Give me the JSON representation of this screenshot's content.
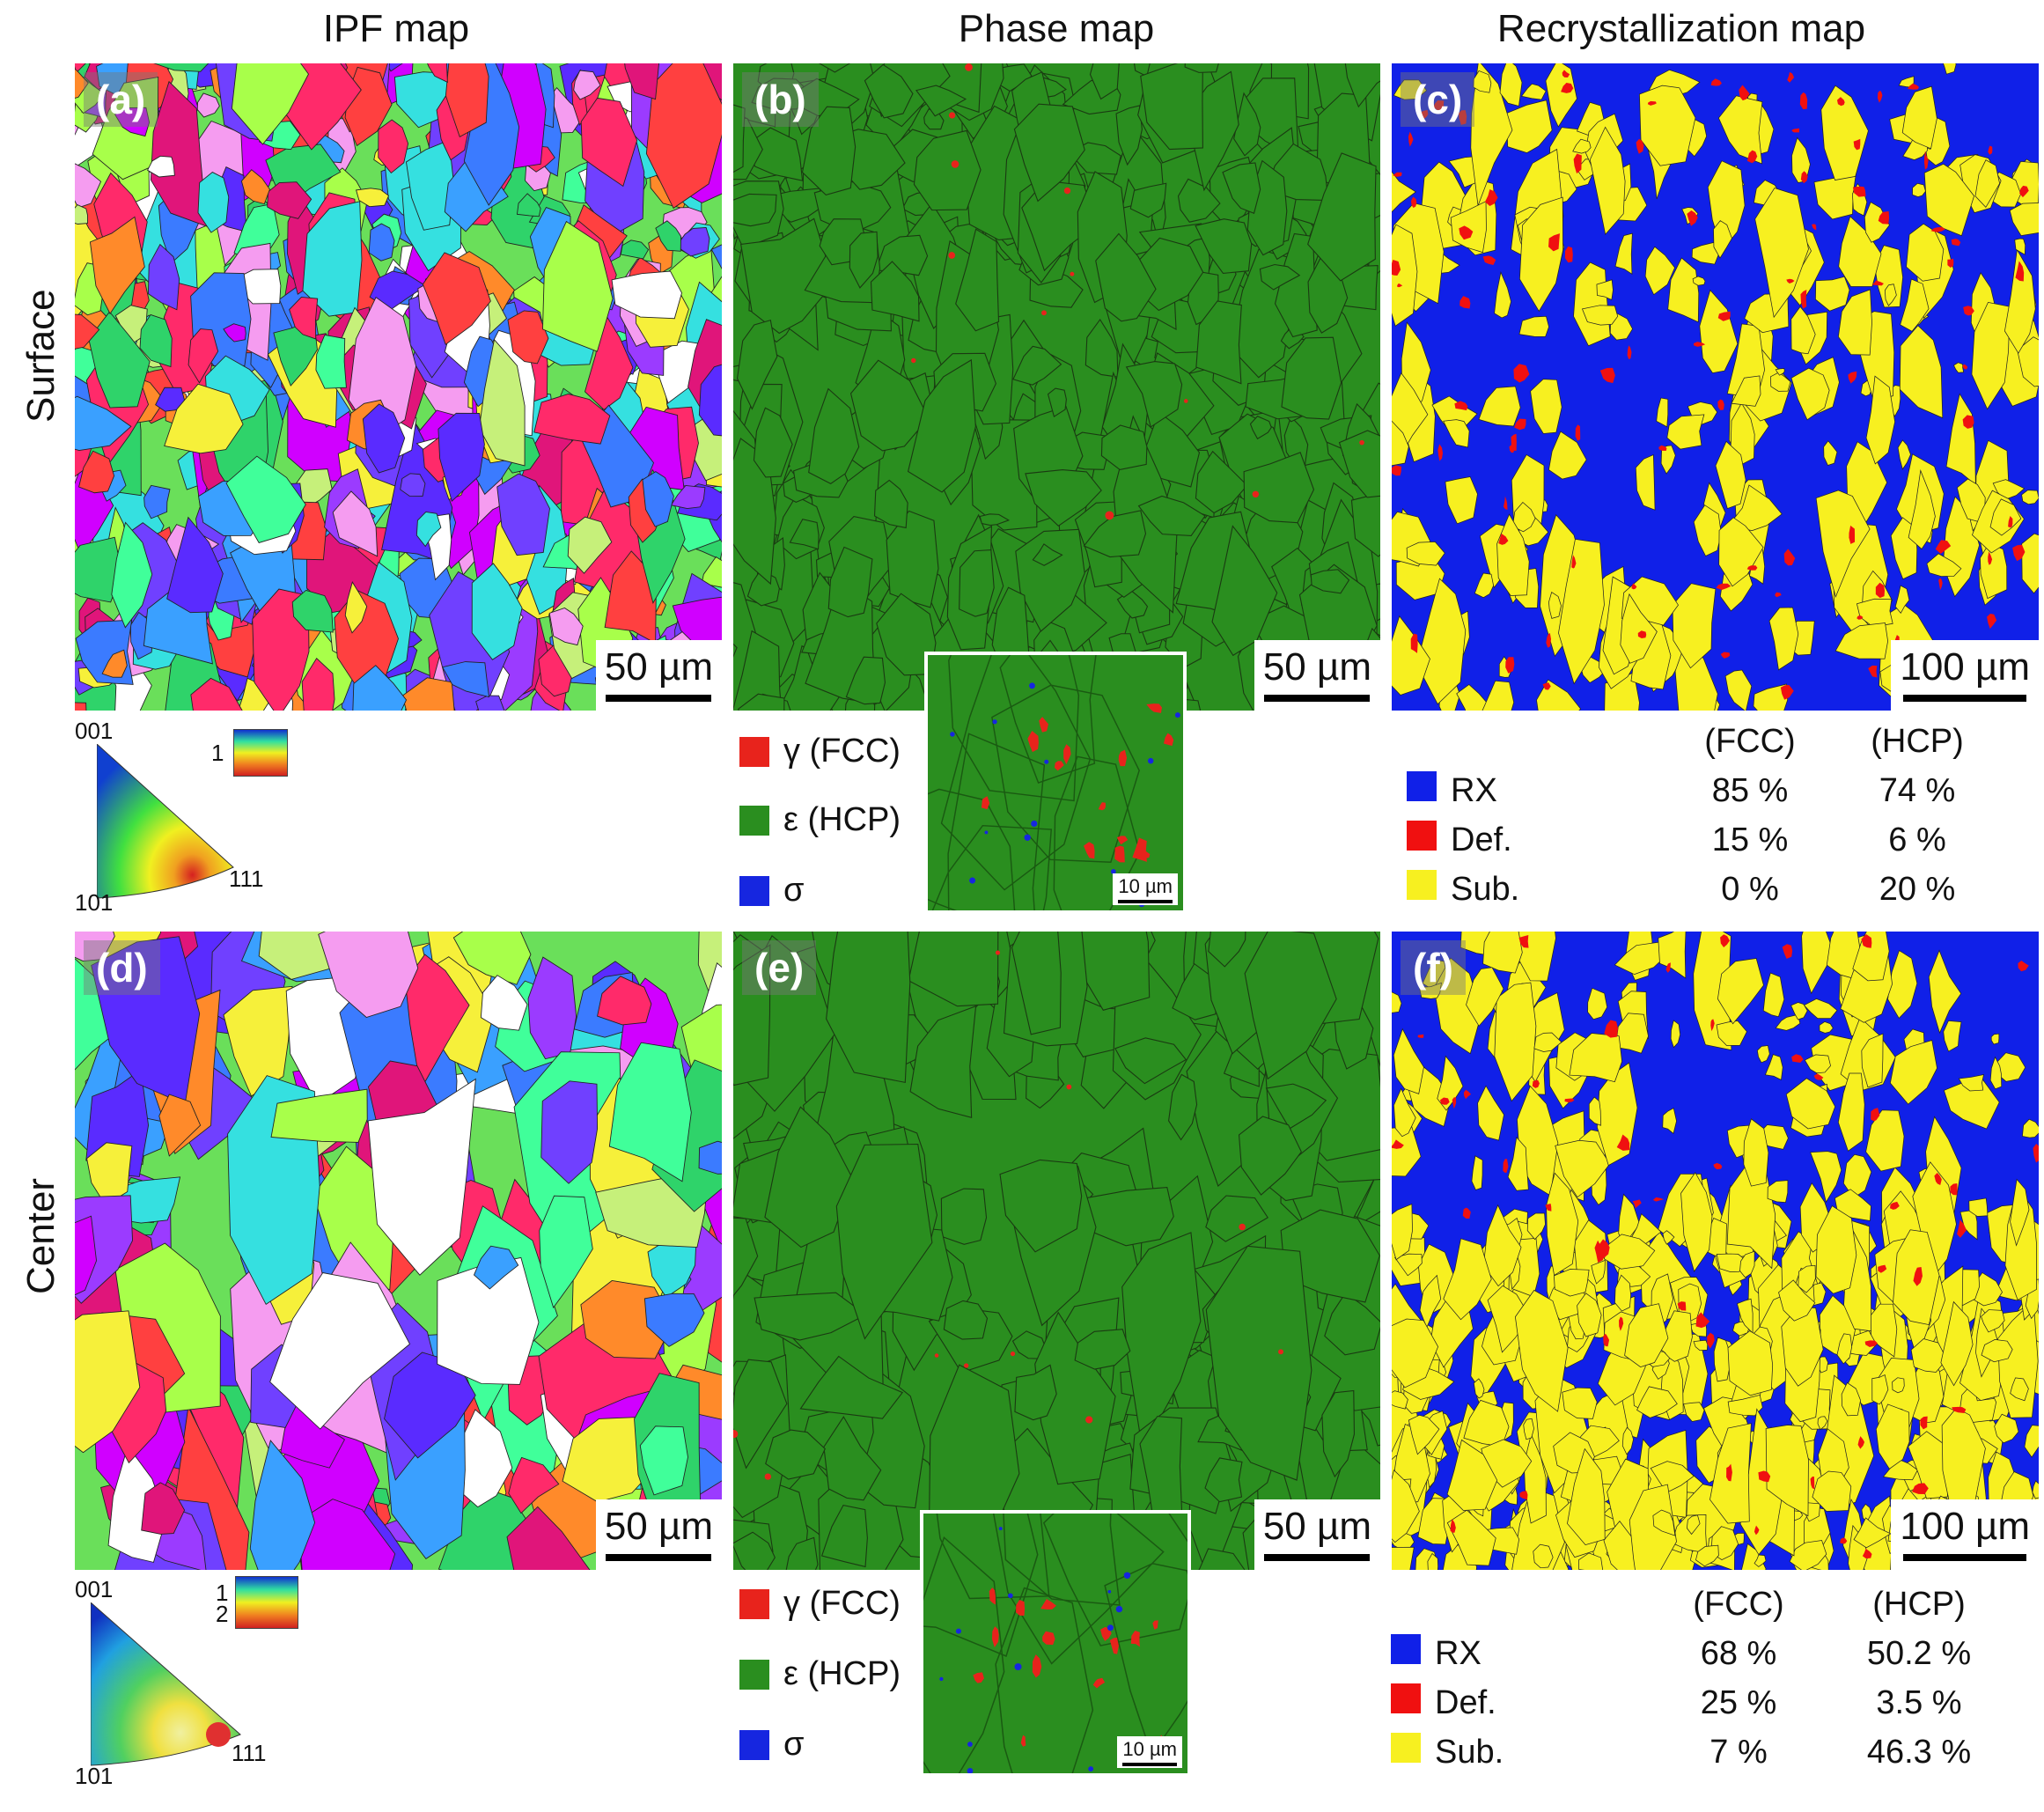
{
  "columns": [
    "IPF map",
    "Phase map",
    "Recrystallization map"
  ],
  "rows": [
    "Surface",
    "Center"
  ],
  "panels": {
    "a": {
      "label": "(a)",
      "scale": "50 µm"
    },
    "b": {
      "label": "(b)",
      "scale": "50 µm",
      "inset_scale": "10 µm"
    },
    "c": {
      "label": "(c)",
      "scale": "100 µm"
    },
    "d": {
      "label": "(d)",
      "scale": "50 µm"
    },
    "e": {
      "label": "(e)",
      "scale": "50 µm",
      "inset_scale": "10 µm"
    },
    "f": {
      "label": "(f)",
      "scale": "100 µm"
    }
  },
  "ipf_key": {
    "corner_001": "001",
    "corner_101": "101",
    "corner_111": "111",
    "colorbar_top": {
      "t1": "1"
    },
    "colorbar_bottom": {
      "t1": "1",
      "t2": "2"
    }
  },
  "phase_legend": {
    "gamma": "γ (FCC)",
    "epsilon": "ε (HCP)",
    "sigma": "σ"
  },
  "colors": {
    "gamma": "#e8231c",
    "epsilon": "#2a8e1f",
    "sigma": "#1626e0",
    "rx": "#1020e8",
    "def": "#f01010",
    "sub": "#f7f020"
  },
  "rx_table_top": {
    "header_fcc": "(FCC)",
    "header_hcp": "(HCP)",
    "rows": [
      {
        "name": "RX",
        "fcc": "85 %",
        "hcp": "74 %"
      },
      {
        "name": "Def.",
        "fcc": "15 %",
        "hcp": "6 %"
      },
      {
        "name": "Sub.",
        "fcc": "0 %",
        "hcp": "20 %"
      }
    ]
  },
  "rx_table_bottom": {
    "header_fcc": "(FCC)",
    "header_hcp": "(HCP)",
    "rows": [
      {
        "name": "RX",
        "fcc": "68 %",
        "hcp": "50.2 %"
      },
      {
        "name": "Def.",
        "fcc": "25 %",
        "hcp": "3.5 %"
      },
      {
        "name": "Sub.",
        "fcc": "7 %",
        "hcp": "46.3 %"
      }
    ]
  }
}
